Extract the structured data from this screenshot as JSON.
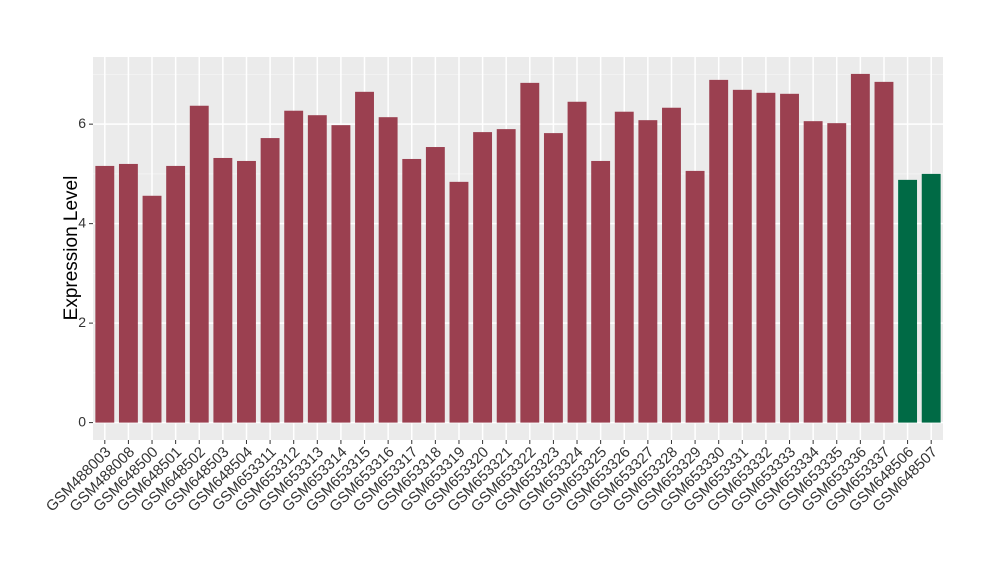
{
  "chart_data": {
    "type": "bar",
    "y_label": "Expression Level",
    "categories": [
      "GSM488003",
      "GSM488008",
      "GSM648500",
      "GSM648501",
      "GSM648502",
      "GSM648503",
      "GSM648504",
      "GSM653311",
      "GSM653312",
      "GSM653313",
      "GSM653314",
      "GSM653315",
      "GSM653316",
      "GSM653317",
      "GSM653318",
      "GSM653319",
      "GSM653320",
      "GSM653321",
      "GSM653322",
      "GSM653323",
      "GSM653324",
      "GSM653325",
      "GSM653326",
      "GSM653327",
      "GSM653328",
      "GSM653329",
      "GSM653330",
      "GSM653331",
      "GSM653332",
      "GSM653333",
      "GSM653334",
      "GSM653335",
      "GSM653336",
      "GSM653337",
      "GSM648506",
      "GSM648507"
    ],
    "values": [
      5.16,
      5.2,
      4.56,
      5.16,
      6.37,
      5.32,
      5.26,
      5.72,
      6.27,
      6.18,
      5.98,
      6.65,
      6.14,
      5.3,
      5.54,
      4.84,
      5.84,
      5.9,
      6.83,
      5.82,
      6.45,
      5.26,
      6.25,
      6.08,
      6.33,
      5.06,
      6.89,
      6.69,
      6.63,
      6.61,
      6.06,
      6.02,
      7.01,
      6.85,
      4.88,
      5.0
    ],
    "colors": [
      "#9b4050",
      "#9b4050",
      "#9b4050",
      "#9b4050",
      "#9b4050",
      "#9b4050",
      "#9b4050",
      "#9b4050",
      "#9b4050",
      "#9b4050",
      "#9b4050",
      "#9b4050",
      "#9b4050",
      "#9b4050",
      "#9b4050",
      "#9b4050",
      "#9b4050",
      "#9b4050",
      "#9b4050",
      "#9b4050",
      "#9b4050",
      "#9b4050",
      "#9b4050",
      "#9b4050",
      "#9b4050",
      "#9b4050",
      "#9b4050",
      "#9b4050",
      "#9b4050",
      "#9b4050",
      "#9b4050",
      "#9b4050",
      "#9b4050",
      "#9b4050",
      "#006a45",
      "#006a45"
    ],
    "ylim": [
      -0.35,
      7.35
    ],
    "yticks": [
      0,
      2,
      4,
      6
    ],
    "minor_yticks": [
      1,
      3,
      5,
      7
    ],
    "grid": true
  }
}
